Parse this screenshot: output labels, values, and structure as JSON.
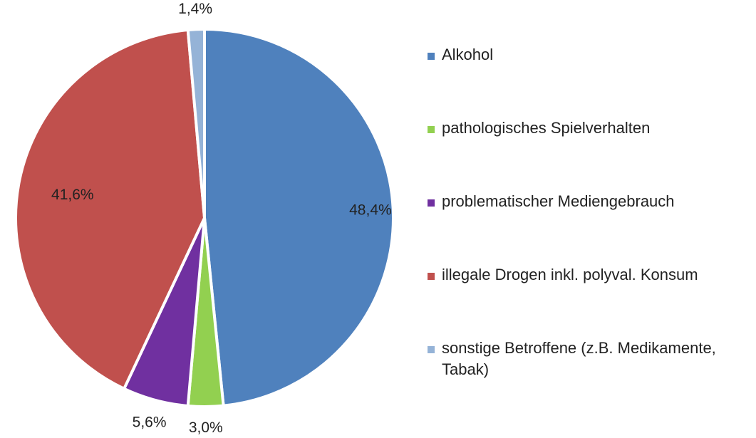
{
  "chart_data": {
    "type": "pie",
    "title": "",
    "start_angle_deg": 0,
    "direction": "clockwise",
    "legend_position": "right",
    "slices": [
      {
        "label": "Alkohol",
        "value": 48.4,
        "value_label": "48,4%",
        "color": "#4F81BD"
      },
      {
        "label": "pathologisches Spielverhalten",
        "value": 3.0,
        "value_label": "3,0%",
        "color": "#92D050"
      },
      {
        "label": "problematischer Mediengebrauch",
        "value": 5.6,
        "value_label": "5,6%",
        "color": "#7030A0"
      },
      {
        "label": "illegale Drogen inkl. polyval. Konsum",
        "value": 41.6,
        "value_label": "41,6%",
        "color": "#C0504D"
      },
      {
        "label": "sonstige Betroffene (z.B. Medikamente, Tabak)",
        "value": 1.4,
        "value_label": "1,4%",
        "color": "#95B3D7"
      }
    ]
  }
}
